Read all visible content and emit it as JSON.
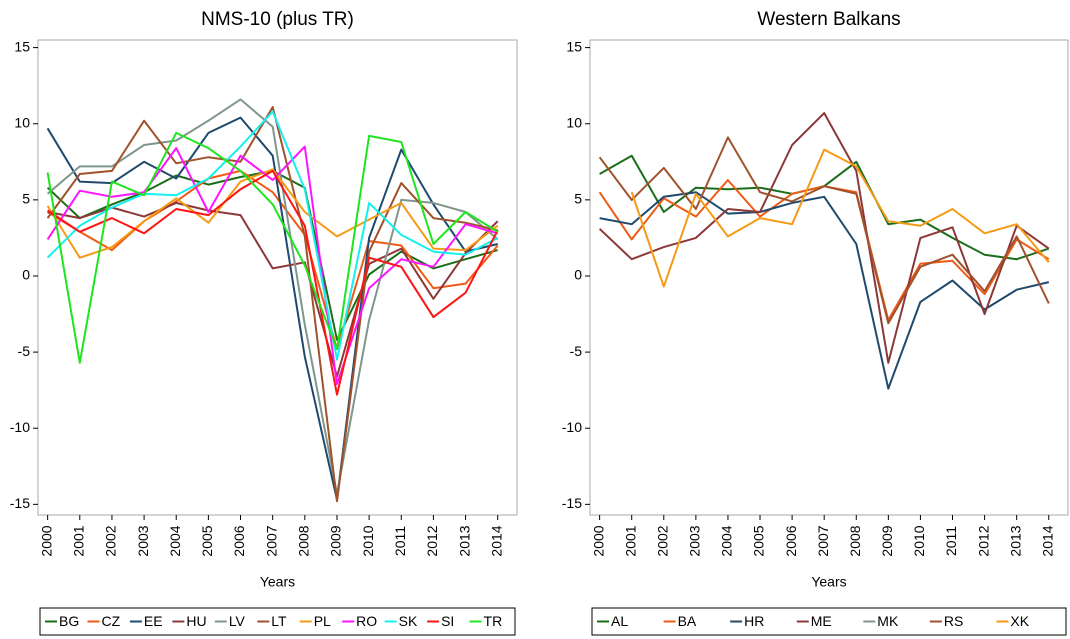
{
  "chart_data": [
    {
      "type": "line",
      "title": "NMS-10 (plus TR)",
      "x_label": "Years",
      "x": [
        2000,
        2001,
        2002,
        2003,
        2004,
        2005,
        2006,
        2007,
        2008,
        2009,
        2010,
        2011,
        2012,
        2013,
        2014
      ],
      "xticks": [
        2000,
        2001,
        2002,
        2003,
        2004,
        2005,
        2006,
        2007,
        2008,
        2009,
        2010,
        2011,
        2012,
        2013,
        2014
      ],
      "xlim": [
        1999.7,
        2014.6
      ],
      "ylim": [
        -15.7,
        15.5
      ],
      "yticks": [
        -15,
        -10,
        -5,
        0,
        5,
        10,
        15
      ],
      "legend": "bottom",
      "series": [
        {
          "name": "BG",
          "color": "#1a6e1a",
          "values": [
            5.8,
            3.8,
            4.7,
            5.5,
            6.6,
            6.0,
            6.5,
            6.9,
            5.8,
            -4.2,
            0.1,
            1.6,
            0.5,
            1.1,
            1.7
          ]
        },
        {
          "name": "CZ",
          "color": "#f05a14",
          "values": [
            4.2,
            2.9,
            1.7,
            3.6,
            4.9,
            6.4,
            6.9,
            5.5,
            2.7,
            -4.8,
            2.3,
            2.0,
            -0.8,
            -0.5,
            2.0
          ]
        },
        {
          "name": "EE",
          "color": "#1f4a6e",
          "values": [
            9.7,
            6.2,
            6.1,
            7.5,
            6.4,
            9.4,
            10.4,
            7.9,
            -5.3,
            -14.7,
            2.5,
            8.3,
            4.7,
            1.6,
            2.1
          ]
        },
        {
          "name": "HU",
          "color": "#8c3838",
          "values": [
            4.2,
            3.8,
            4.5,
            3.9,
            4.8,
            4.3,
            4.0,
            0.5,
            0.9,
            -6.6,
            0.8,
            1.8,
            -1.5,
            1.5,
            3.6
          ]
        },
        {
          "name": "LV",
          "color": "#7f968c",
          "values": [
            5.4,
            7.2,
            7.2,
            8.6,
            8.9,
            10.2,
            11.6,
            9.8,
            -3.2,
            -14.3,
            -2.9,
            5.0,
            4.8,
            4.2,
            2.4
          ]
        },
        {
          "name": "LT",
          "color": "#a0522d",
          "values": [
            3.8,
            6.7,
            6.9,
            10.2,
            7.4,
            7.8,
            7.5,
            11.1,
            2.6,
            -14.8,
            1.6,
            6.1,
            3.8,
            3.5,
            3.0
          ]
        },
        {
          "name": "PL",
          "color": "#f59a14",
          "values": [
            4.6,
            1.2,
            1.9,
            3.6,
            5.1,
            3.5,
            6.2,
            7.0,
            4.2,
            2.6,
            3.7,
            4.8,
            1.8,
            1.7,
            3.3
          ]
        },
        {
          "name": "RO",
          "color": "#ff14ff",
          "values": [
            2.4,
            5.6,
            5.2,
            5.5,
            8.4,
            4.2,
            7.9,
            6.3,
            8.5,
            -7.1,
            -0.8,
            1.1,
            0.6,
            3.4,
            2.8
          ]
        },
        {
          "name": "SK",
          "color": "#14f0f0",
          "values": [
            1.2,
            3.3,
            4.5,
            5.4,
            5.3,
            6.4,
            8.5,
            10.8,
            5.7,
            -5.5,
            4.8,
            2.7,
            1.6,
            1.4,
            2.5
          ]
        },
        {
          "name": "SI",
          "color": "#ff1414",
          "values": [
            4.3,
            2.9,
            3.8,
            2.8,
            4.4,
            4.0,
            5.7,
            6.9,
            3.3,
            -7.8,
            1.2,
            0.6,
            -2.7,
            -1.1,
            3.0
          ]
        },
        {
          "name": "TR",
          "color": "#1ee61e",
          "values": [
            6.8,
            -5.7,
            6.2,
            5.3,
            9.4,
            8.4,
            6.9,
            4.7,
            0.7,
            -4.8,
            9.2,
            8.8,
            2.1,
            4.2,
            2.9
          ]
        }
      ]
    },
    {
      "type": "line",
      "title": "Western Balkans",
      "x_label": "Years",
      "x": [
        2000,
        2001,
        2002,
        2003,
        2004,
        2005,
        2006,
        2007,
        2008,
        2009,
        2010,
        2011,
        2012,
        2013,
        2014
      ],
      "xticks": [
        2000,
        2001,
        2002,
        2003,
        2004,
        2005,
        2006,
        2007,
        2008,
        2009,
        2010,
        2011,
        2012,
        2013,
        2014
      ],
      "xlim": [
        1999.7,
        2014.6
      ],
      "ylim": [
        -15.7,
        15.5
      ],
      "yticks": [
        -15,
        -10,
        -5,
        0,
        5,
        10,
        15
      ],
      "legend": "bottom",
      "series": [
        {
          "name": "AL",
          "color": "#1a6e1a",
          "values": [
            6.7,
            7.9,
            4.2,
            5.8,
            5.7,
            5.8,
            5.4,
            5.9,
            7.5,
            3.4,
            3.7,
            2.5,
            1.4,
            1.1,
            1.8
          ]
        },
        {
          "name": "BA",
          "color": "#f05a14",
          "values": [
            5.5,
            2.4,
            5.1,
            3.9,
            6.3,
            3.9,
            5.4,
            5.9,
            5.5,
            -2.9,
            0.8,
            1.0,
            -1.2,
            2.4,
            1.1
          ]
        },
        {
          "name": "HR",
          "color": "#1f4a6e",
          "values": [
            3.8,
            3.4,
            5.2,
            5.5,
            4.1,
            4.2,
            4.8,
            5.2,
            2.1,
            -7.4,
            -1.7,
            -0.3,
            -2.2,
            -0.9,
            -0.4
          ]
        },
        {
          "name": "ME",
          "color": "#8c3838",
          "values": [
            3.1,
            1.1,
            1.9,
            2.5,
            4.4,
            4.2,
            8.6,
            10.7,
            6.9,
            -5.7,
            2.5,
            3.2,
            -2.5,
            3.3,
            1.8
          ]
        },
        {
          "name": "MK",
          "color": "#7f968c",
          "values": [
            null,
            null,
            null,
            null,
            null,
            null,
            null,
            null,
            null,
            null,
            null,
            null,
            null,
            null,
            null
          ]
        },
        {
          "name": "RS",
          "color": "#a0522d",
          "values": [
            7.8,
            5.0,
            7.1,
            4.4,
            9.1,
            5.5,
            4.9,
            5.9,
            5.4,
            -3.1,
            0.6,
            1.4,
            -1.0,
            2.6,
            -1.8
          ]
        },
        {
          "name": "XK",
          "color": "#f59a14",
          "values": [
            null,
            5.5,
            -0.7,
            5.4,
            2.6,
            3.8,
            3.4,
            8.3,
            7.2,
            3.6,
            3.3,
            4.4,
            2.8,
            3.4,
            0.9
          ]
        }
      ]
    }
  ]
}
